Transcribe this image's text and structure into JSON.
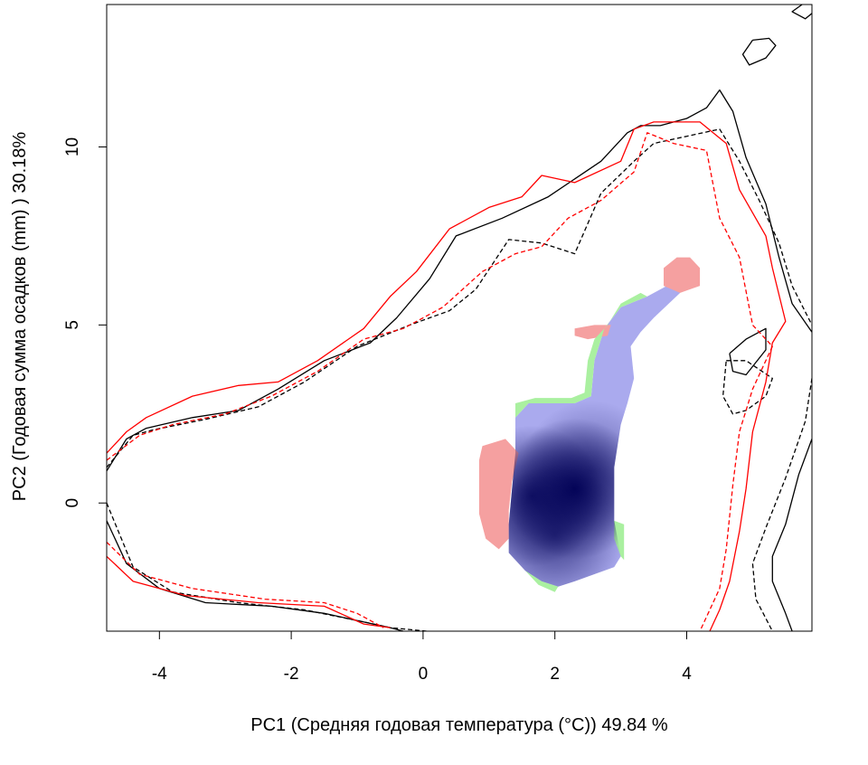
{
  "chart_data": {
    "type": "heatmap",
    "title": "",
    "xlabel": "PC1 (Средняя годовая температура (°C)) 49.84 %",
    "ylabel": "PC2 (Годовая сумма осадков  (mm) ) 30.18%",
    "xlim": [
      -4.8,
      5.9
    ],
    "ylim": [
      -3.6,
      14.0
    ],
    "x_ticks": [
      -4,
      -2,
      0,
      2,
      4
    ],
    "x_tick_labels": [
      "-4",
      "-2",
      "0",
      "2",
      "4"
    ],
    "y_ticks": [
      0,
      5,
      10
    ],
    "y_tick_labels": [
      "0",
      "5",
      "10"
    ],
    "grid": false,
    "colors": {
      "overlap_density_dark": "#000055",
      "overlap_density_light": "#aaaaee",
      "red_only": "#f5a0a0",
      "green_only": "#aaf0a0",
      "contour_black": "#000000",
      "contour_red": "#ff0000"
    },
    "regions": [
      {
        "name": "",
        "color": "#aaaaee",
        "polygon": [
          [
            1.4,
            2.4
          ],
          [
            1.6,
            2.8
          ],
          [
            2.3,
            2.8
          ],
          [
            2.55,
            3.0
          ],
          [
            2.6,
            4.0
          ],
          [
            2.75,
            4.9
          ],
          [
            3.0,
            5.5
          ],
          [
            3.4,
            5.8
          ],
          [
            3.8,
            6.2
          ],
          [
            3.9,
            5.9
          ],
          [
            3.5,
            5.2
          ],
          [
            3.3,
            4.8
          ],
          [
            3.15,
            4.4
          ],
          [
            3.2,
            3.5
          ],
          [
            3.1,
            2.8
          ],
          [
            3.0,
            2.2
          ],
          [
            2.9,
            1.0
          ],
          [
            2.9,
            -0.5
          ],
          [
            3.0,
            -1.5
          ],
          [
            2.9,
            -1.8
          ],
          [
            2.6,
            -2.0
          ],
          [
            2.3,
            -2.2
          ],
          [
            2.05,
            -2.35
          ],
          [
            1.8,
            -2.2
          ],
          [
            1.55,
            -1.9
          ],
          [
            1.3,
            -1.4
          ],
          [
            1.3,
            -0.6
          ],
          [
            1.35,
            0.4
          ],
          [
            1.4,
            1.4
          ]
        ]
      },
      {
        "name": "",
        "color": "#f5a0a0",
        "polygon": [
          [
            1.25,
            1.8
          ],
          [
            0.9,
            1.6
          ],
          [
            0.85,
            1.2
          ],
          [
            0.85,
            -0.3
          ],
          [
            0.95,
            -1.0
          ],
          [
            1.15,
            -1.3
          ],
          [
            1.3,
            -1.0
          ],
          [
            1.3,
            -0.2
          ],
          [
            1.35,
            0.6
          ],
          [
            1.45,
            1.4
          ]
        ]
      },
      {
        "name": "",
        "color": "#f5a0a0",
        "polygon": [
          [
            3.65,
            6.6
          ],
          [
            3.85,
            6.9
          ],
          [
            4.05,
            6.9
          ],
          [
            4.2,
            6.6
          ],
          [
            4.2,
            6.1
          ],
          [
            3.9,
            5.9
          ],
          [
            3.65,
            6.1
          ]
        ]
      },
      {
        "name": "",
        "color": "#f5a0a0",
        "polygon": [
          [
            2.3,
            4.9
          ],
          [
            2.6,
            5.0
          ],
          [
            2.85,
            5.0
          ],
          [
            2.8,
            4.7
          ],
          [
            2.5,
            4.6
          ],
          [
            2.3,
            4.7
          ]
        ]
      },
      {
        "name": "",
        "color": "#aaf0a0",
        "polygon": [
          [
            1.4,
            2.4
          ],
          [
            1.4,
            2.8
          ],
          [
            1.7,
            2.95
          ],
          [
            2.25,
            2.95
          ],
          [
            2.45,
            3.1
          ],
          [
            2.5,
            4.0
          ],
          [
            2.6,
            4.6
          ],
          [
            2.8,
            5.0
          ],
          [
            3.0,
            5.6
          ],
          [
            3.3,
            5.9
          ],
          [
            3.4,
            5.8
          ],
          [
            3.0,
            5.5
          ],
          [
            2.75,
            4.9
          ],
          [
            2.6,
            4.0
          ],
          [
            2.55,
            3.0
          ],
          [
            2.3,
            2.8
          ],
          [
            1.6,
            2.8
          ]
        ]
      },
      {
        "name": "",
        "color": "#aaf0a0",
        "polygon": [
          [
            1.55,
            -1.9
          ],
          [
            1.75,
            -2.3
          ],
          [
            2.0,
            -2.5
          ],
          [
            2.05,
            -2.35
          ],
          [
            1.8,
            -2.2
          ]
        ]
      },
      {
        "name": "",
        "color": "#aaf0a0",
        "polygon": [
          [
            2.9,
            -0.5
          ],
          [
            3.05,
            -0.6
          ],
          [
            3.05,
            -1.6
          ],
          [
            3.0,
            -1.5
          ],
          [
            2.9,
            -1.0
          ]
        ]
      }
    ],
    "density_peaks": [
      {
        "x": 2.3,
        "y": 0.4,
        "weight": 1.0
      },
      {
        "x": 1.65,
        "y": 0.2,
        "weight": 0.85
      },
      {
        "x": 2.0,
        "y": -0.9,
        "weight": 0.7
      },
      {
        "x": 2.55,
        "y": 0.9,
        "weight": 0.45
      }
    ],
    "series": [
      {
        "color": "#000000",
        "dash": "solid",
        "paths": [
          [
            [
              -4.8,
              0.9
            ],
            [
              -4.5,
              1.8
            ],
            [
              -4.2,
              2.1
            ],
            [
              -3.5,
              2.4
            ],
            [
              -2.8,
              2.6
            ],
            [
              -2.2,
              3.2
            ],
            [
              -1.5,
              4.0
            ],
            [
              -0.8,
              4.5
            ],
            [
              -0.4,
              5.2
            ],
            [
              0.1,
              6.3
            ],
            [
              0.5,
              7.5
            ],
            [
              1.2,
              8.0
            ],
            [
              1.9,
              8.6
            ],
            [
              2.7,
              9.6
            ],
            [
              3.1,
              10.4
            ],
            [
              3.3,
              10.6
            ],
            [
              3.6,
              10.6
            ],
            [
              4.0,
              10.8
            ],
            [
              4.3,
              11.1
            ],
            [
              4.5,
              11.6
            ],
            [
              4.7,
              11.0
            ],
            [
              4.9,
              9.7
            ],
            [
              5.2,
              8.4
            ],
            [
              5.4,
              6.9
            ],
            [
              5.6,
              5.6
            ],
            [
              5.9,
              4.8
            ]
          ],
          [
            [
              4.65,
              4.2
            ],
            [
              4.9,
              4.6
            ],
            [
              5.2,
              4.9
            ],
            [
              5.2,
              4.3
            ],
            [
              4.9,
              3.6
            ],
            [
              4.7,
              3.7
            ],
            [
              4.65,
              4.2
            ]
          ],
          [
            [
              -4.8,
              -0.5
            ],
            [
              -4.5,
              -1.7
            ],
            [
              -4.0,
              -2.4
            ],
            [
              -3.3,
              -2.8
            ],
            [
              -2.3,
              -2.9
            ],
            [
              -1.5,
              -3.1
            ],
            [
              -1.0,
              -3.3
            ],
            [
              -0.5,
              -3.5
            ],
            [
              -0.3,
              -3.6
            ]
          ],
          [
            [
              5.9,
              1.8
            ],
            [
              5.7,
              0.8
            ],
            [
              5.5,
              -0.6
            ],
            [
              5.3,
              -1.5
            ],
            [
              5.3,
              -2.2
            ],
            [
              5.5,
              -3.1
            ],
            [
              5.6,
              -3.6
            ]
          ],
          [
            [
              5.0,
              13.0
            ],
            [
              5.25,
              13.05
            ],
            [
              5.35,
              12.85
            ],
            [
              5.2,
              12.5
            ],
            [
              4.95,
              12.3
            ],
            [
              4.85,
              12.6
            ],
            [
              5.0,
              13.0
            ]
          ],
          [
            [
              5.75,
              14.0
            ],
            [
              5.6,
              13.8
            ],
            [
              5.8,
              13.6
            ],
            [
              5.9,
              13.75
            ]
          ]
        ]
      },
      {
        "color": "#000000",
        "dash": "dashed",
        "paths": [
          [
            [
              -4.8,
              1.0
            ],
            [
              -4.4,
              1.9
            ],
            [
              -4.1,
              2.05
            ],
            [
              -3.3,
              2.35
            ],
            [
              -2.5,
              2.7
            ],
            [
              -1.8,
              3.4
            ],
            [
              -1.0,
              4.4
            ],
            [
              -0.2,
              5.0
            ],
            [
              0.4,
              5.4
            ],
            [
              0.8,
              6.0
            ],
            [
              1.3,
              7.4
            ],
            [
              1.8,
              7.3
            ],
            [
              2.3,
              7.0
            ],
            [
              2.7,
              8.7
            ],
            [
              3.2,
              9.6
            ],
            [
              3.5,
              10.1
            ],
            [
              4.0,
              10.3
            ],
            [
              4.5,
              10.5
            ],
            [
              4.8,
              9.6
            ],
            [
              5.1,
              8.5
            ],
            [
              5.4,
              7.3
            ],
            [
              5.6,
              6.1
            ],
            [
              5.9,
              5.0
            ]
          ],
          [
            [
              4.6,
              4.0
            ],
            [
              4.9,
              4.0
            ],
            [
              5.3,
              3.5
            ],
            [
              5.2,
              3.0
            ],
            [
              4.9,
              2.6
            ],
            [
              4.7,
              2.5
            ],
            [
              4.55,
              3.0
            ],
            [
              4.6,
              4.0
            ]
          ],
          [
            [
              -4.8,
              0.0
            ],
            [
              -4.4,
              -1.8
            ],
            [
              -3.8,
              -2.5
            ],
            [
              -2.8,
              -2.8
            ],
            [
              -1.8,
              -3.0
            ],
            [
              -1.0,
              -3.3
            ],
            [
              -0.5,
              -3.5
            ],
            [
              0.05,
              -3.6
            ]
          ],
          [
            [
              5.9,
              3.5
            ],
            [
              5.8,
              2.3
            ],
            [
              5.5,
              0.7
            ],
            [
              5.2,
              -0.7
            ],
            [
              5.0,
              -1.7
            ],
            [
              5.05,
              -2.7
            ],
            [
              5.3,
              -3.6
            ]
          ]
        ]
      },
      {
        "color": "#ff0000",
        "dash": "solid",
        "paths": [
          [
            [
              -4.8,
              1.4
            ],
            [
              -4.5,
              2.0
            ],
            [
              -4.2,
              2.4
            ],
            [
              -3.5,
              3.0
            ],
            [
              -2.8,
              3.3
            ],
            [
              -2.2,
              3.4
            ],
            [
              -1.6,
              4.0
            ],
            [
              -0.9,
              4.9
            ],
            [
              -0.5,
              5.8
            ],
            [
              -0.1,
              6.5
            ],
            [
              0.4,
              7.7
            ],
            [
              1.0,
              8.3
            ],
            [
              1.5,
              8.6
            ],
            [
              1.8,
              9.2
            ],
            [
              2.3,
              9.0
            ],
            [
              3.0,
              9.6
            ],
            [
              3.2,
              10.5
            ],
            [
              3.5,
              10.7
            ],
            [
              4.2,
              10.7
            ],
            [
              4.6,
              10.1
            ],
            [
              4.8,
              8.8
            ],
            [
              5.2,
              7.5
            ],
            [
              5.3,
              6.6
            ],
            [
              5.5,
              5.1
            ],
            [
              5.3,
              4.5
            ],
            [
              5.2,
              3.4
            ],
            [
              5.0,
              2.0
            ],
            [
              4.9,
              0.4
            ],
            [
              4.8,
              -0.8
            ],
            [
              4.65,
              -2.2
            ],
            [
              4.5,
              -3.0
            ],
            [
              4.35,
              -3.6
            ]
          ],
          [
            [
              -4.8,
              -1.5
            ],
            [
              -4.4,
              -2.2
            ],
            [
              -3.6,
              -2.6
            ],
            [
              -2.5,
              -2.8
            ],
            [
              -1.5,
              -2.9
            ],
            [
              -0.9,
              -3.4
            ],
            [
              -0.5,
              -3.5
            ]
          ]
        ]
      },
      {
        "color": "#ff0000",
        "dash": "dashed",
        "paths": [
          [
            [
              -4.8,
              1.2
            ],
            [
              -4.3,
              1.9
            ],
            [
              -3.8,
              2.2
            ],
            [
              -3.0,
              2.5
            ],
            [
              -2.3,
              3.0
            ],
            [
              -1.6,
              3.7
            ],
            [
              -0.9,
              4.6
            ],
            [
              -0.3,
              4.9
            ],
            [
              0.3,
              5.5
            ],
            [
              0.9,
              6.5
            ],
            [
              1.4,
              7.0
            ],
            [
              1.8,
              7.2
            ],
            [
              2.2,
              8.0
            ],
            [
              2.7,
              8.5
            ],
            [
              3.2,
              9.3
            ],
            [
              3.4,
              10.4
            ],
            [
              3.8,
              10.1
            ],
            [
              4.3,
              9.9
            ],
            [
              4.5,
              8.0
            ],
            [
              4.8,
              6.9
            ],
            [
              5.0,
              5.0
            ],
            [
              5.3,
              4.4
            ],
            [
              5.0,
              3.2
            ],
            [
              4.8,
              2.0
            ],
            [
              4.7,
              0.5
            ],
            [
              4.6,
              -1.3
            ],
            [
              4.5,
              -2.4
            ],
            [
              4.2,
              -3.6
            ]
          ],
          [
            [
              -4.8,
              -1.1
            ],
            [
              -4.3,
              -2.0
            ],
            [
              -3.5,
              -2.4
            ],
            [
              -2.4,
              -2.7
            ],
            [
              -1.5,
              -2.8
            ],
            [
              -1.0,
              -3.1
            ],
            [
              -0.6,
              -3.5
            ]
          ]
        ]
      }
    ]
  }
}
